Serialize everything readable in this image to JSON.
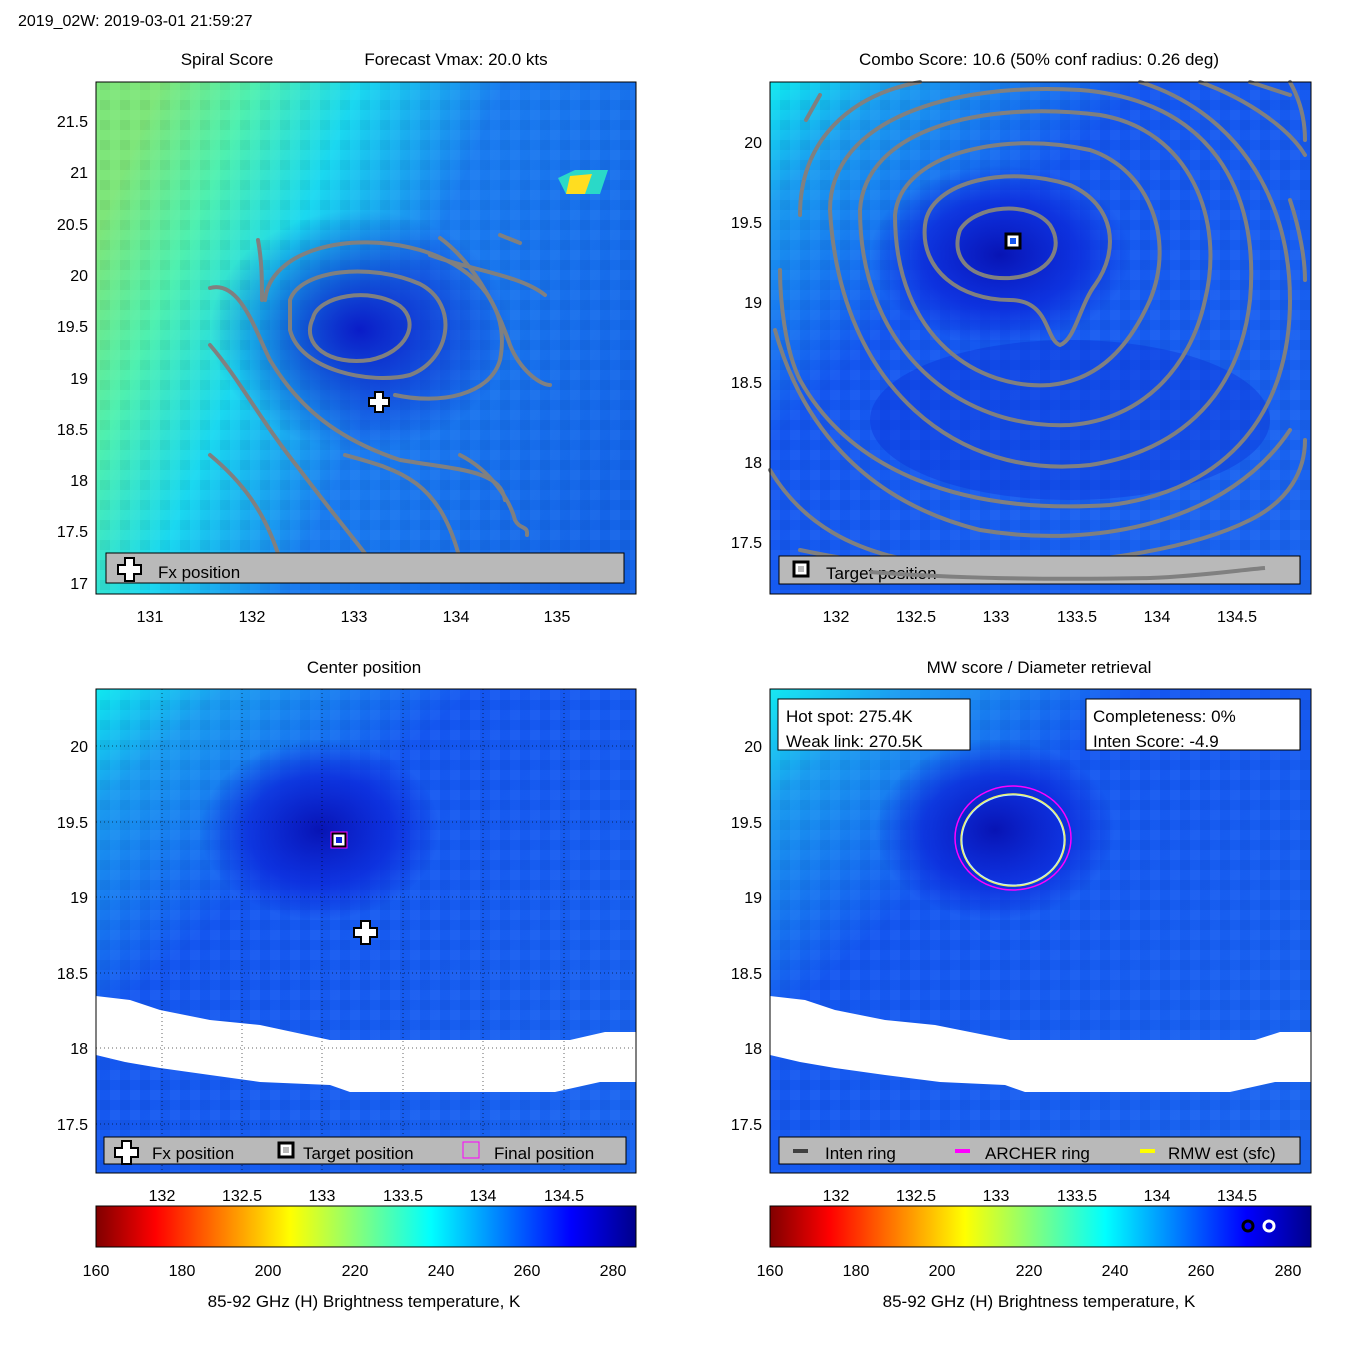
{
  "header": "2019_02W: 2019-03-01 21:59:27",
  "colors": {
    "contour": "#808080",
    "legend_bg": "#b9b9b9",
    "white_band": "#ffffff",
    "archer_ring": "#ff00ff",
    "rmw_ring": "#ffff00",
    "inten_ring": "#404040"
  },
  "panels": {
    "spiral": {
      "title_left": "Spiral Score",
      "title_right": "Forecast Vmax: 20.0 kts",
      "xticks": [
        "131",
        "132",
        "133",
        "134",
        "135"
      ],
      "yticks": [
        "21.5",
        "21",
        "20.5",
        "20",
        "19.5",
        "19",
        "18.5",
        "18",
        "17.5",
        "17"
      ],
      "legend": [
        {
          "icon": "plus-icon",
          "label": "Fx position"
        }
      ]
    },
    "combo": {
      "title": "Combo Score: 10.6  (50% conf radius: 0.26 deg)",
      "xticks": [
        "132",
        "132.5",
        "133",
        "133.5",
        "134",
        "134.5"
      ],
      "yticks": [
        "20",
        "19.5",
        "19",
        "18.5",
        "18",
        "17.5"
      ],
      "legend": [
        {
          "icon": "square-icon",
          "label": "Target position"
        }
      ]
    },
    "center": {
      "title": "Center position",
      "xticks": [
        "132",
        "132.5",
        "133",
        "133.5",
        "134",
        "134.5"
      ],
      "yticks": [
        "20",
        "19.5",
        "19",
        "18.5",
        "18",
        "17.5"
      ],
      "legend": [
        {
          "icon": "plus-icon",
          "label": "Fx position"
        },
        {
          "icon": "square-icon",
          "label": "Target position"
        },
        {
          "icon": "magenta-square-icon",
          "label": "Final position"
        }
      ]
    },
    "mw": {
      "title": "MW score / Diameter retrieval",
      "xticks": [
        "132",
        "132.5",
        "133",
        "133.5",
        "134",
        "134.5"
      ],
      "yticks": [
        "20",
        "19.5",
        "19",
        "18.5",
        "18",
        "17.5"
      ],
      "hot_spot": "Hot spot: 275.4K",
      "weak_link": "Weak link: 270.5K",
      "completeness": "Completeness: 0%",
      "inten_score": "Inten Score: -4.9",
      "legend": [
        {
          "icon": "inten-ring-icon",
          "label": "Inten ring"
        },
        {
          "icon": "archer-ring-icon",
          "label": "ARCHER ring"
        },
        {
          "icon": "rmw-ring-icon",
          "label": "RMW est (sfc)"
        }
      ]
    }
  },
  "colorbar": {
    "ticks": [
      "160",
      "180",
      "200",
      "220",
      "240",
      "260",
      "280"
    ],
    "label": "85-92 GHz (H) Brightness temperature, K",
    "range": [
      160,
      285
    ]
  },
  "chart_data": [
    {
      "type": "heatmap",
      "title": "Spiral Score",
      "subtitle": "Forecast Vmax: 20.0 kts",
      "xlim": [
        130.5,
        135.8
      ],
      "ylim": [
        16.9,
        21.9
      ],
      "fx_position": {
        "lon": 133.25,
        "lat": 18.75
      },
      "annotations": [
        "Fx position"
      ]
    },
    {
      "type": "heatmap",
      "title": "Combo Score: 10.6  (50% conf radius: 0.26 deg)",
      "combo_score": 10.6,
      "conf_radius_deg": 0.26,
      "xlim": [
        131.6,
        134.95
      ],
      "ylim": [
        17.2,
        20.4
      ],
      "target_position": {
        "lon": 133.1,
        "lat": 19.37
      },
      "annotations": [
        "Target position"
      ]
    },
    {
      "type": "heatmap",
      "title": "Center position",
      "xlim": [
        131.6,
        134.95
      ],
      "ylim": [
        17.2,
        20.4
      ],
      "grid": true,
      "fx_position": {
        "lon": 133.27,
        "lat": 18.77
      },
      "target_position": {
        "lon": 133.11,
        "lat": 19.37
      },
      "final_position": {
        "lon": 133.11,
        "lat": 19.37
      }
    },
    {
      "type": "heatmap",
      "title": "MW score / Diameter retrieval",
      "xlim": [
        131.6,
        134.95
      ],
      "ylim": [
        17.2,
        20.4
      ],
      "hot_spot_K": 275.4,
      "weak_link_K": 270.5,
      "completeness_pct": 0,
      "inten_score": -4.9,
      "ring_center": {
        "lon": 133.11,
        "lat": 19.37
      },
      "colorbar_markers_K": [
        270.5,
        275.4
      ]
    }
  ]
}
